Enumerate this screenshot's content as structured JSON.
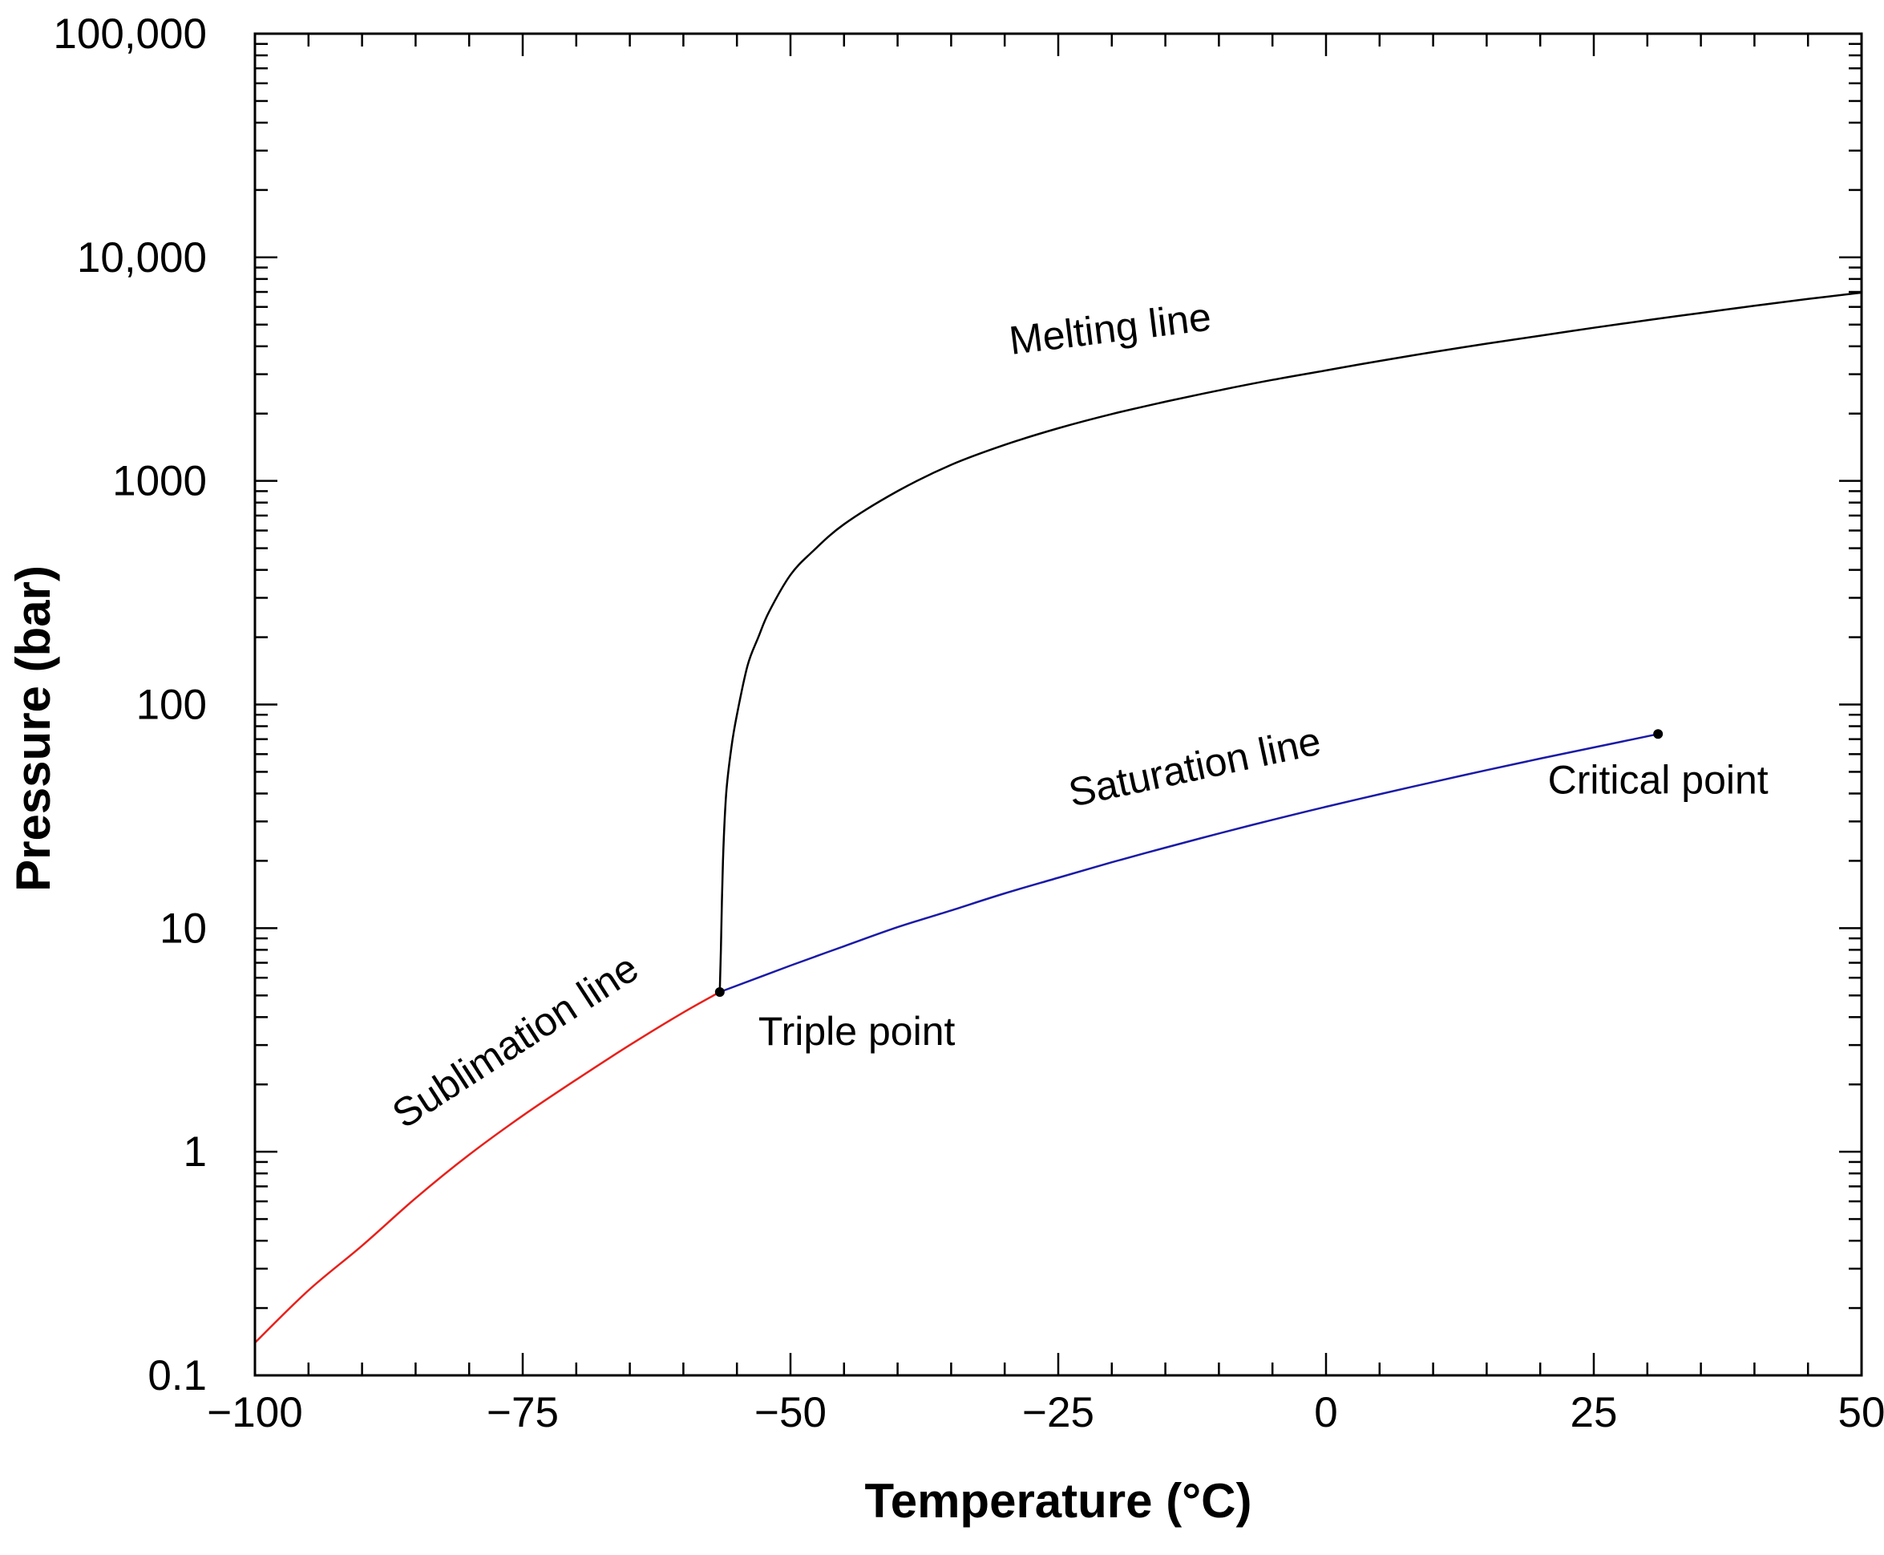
{
  "chart_data": {
    "type": "line",
    "title": "",
    "xlabel": "Temperature (°C)",
    "ylabel": "Pressure (bar)",
    "xlim": [
      -100,
      50
    ],
    "ylim": [
      0.1,
      100000
    ],
    "yscale": "log",
    "grid": false,
    "x_major_ticks": [
      {
        "value": -100,
        "label": "−100"
      },
      {
        "value": -75,
        "label": "−75"
      },
      {
        "value": -50,
        "label": "−50"
      },
      {
        "value": -25,
        "label": "−25"
      },
      {
        "value": 0,
        "label": "0"
      },
      {
        "value": 25,
        "label": "25"
      },
      {
        "value": 50,
        "label": "50"
      }
    ],
    "x_minor_step": 5,
    "y_major_ticks": [
      {
        "value": 0.1,
        "label": "0.1"
      },
      {
        "value": 1,
        "label": "1"
      },
      {
        "value": 10,
        "label": "10"
      },
      {
        "value": 100,
        "label": "100"
      },
      {
        "value": 1000,
        "label": "1000"
      },
      {
        "value": 10000,
        "label": "10,000"
      },
      {
        "value": 100000,
        "label": "100,000"
      }
    ],
    "series": [
      {
        "key": "sublimation",
        "color": "#e8201a",
        "x": [
          -100,
          -95,
          -90,
          -85,
          -80,
          -75,
          -70,
          -65,
          -60,
          -56.6
        ],
        "y": [
          0.14,
          0.24,
          0.38,
          0.62,
          0.97,
          1.45,
          2.1,
          3.0,
          4.2,
          5.18
        ]
      },
      {
        "key": "saturation",
        "color": "#1a1aa8",
        "x": [
          -56.6,
          -50,
          -45,
          -40,
          -35,
          -30,
          -25,
          -20,
          -15,
          -10,
          -5,
          0,
          5,
          10,
          15,
          20,
          25,
          31.0
        ],
        "y": [
          5.18,
          6.8,
          8.3,
          10.1,
          12.0,
          14.3,
          16.8,
          19.7,
          22.9,
          26.5,
          30.5,
          34.9,
          39.7,
          45.0,
          50.9,
          57.3,
          64.3,
          73.8
        ]
      },
      {
        "key": "melting",
        "color": "#000000",
        "x": [
          -56.6,
          -56.5,
          -56.3,
          -56.0,
          -55.5,
          -55.0,
          -54.0,
          -53.0,
          -52.0,
          -50.0,
          -48.0,
          -45.0,
          -40.0,
          -35.0,
          -30.0,
          -25.0,
          -20.0,
          -15.0,
          -10.0,
          -5.0,
          0.0,
          5.0,
          10.0,
          15.0,
          20.0,
          25.0,
          30.0,
          35.0,
          40.0,
          45.0,
          50.0
        ],
        "y": [
          5.18,
          8,
          20,
          40,
          65,
          90,
          150,
          200,
          260,
          380,
          480,
          640,
          900,
          1180,
          1450,
          1720,
          1990,
          2260,
          2540,
          2830,
          3120,
          3440,
          3770,
          4110,
          4460,
          4840,
          5230,
          5640,
          6070,
          6510,
          6950
        ]
      }
    ],
    "points": [
      {
        "key": "triple",
        "x": -56.6,
        "y": 5.18
      },
      {
        "key": "critical",
        "x": 31.0,
        "y": 73.8
      }
    ],
    "annotations": {
      "melting_line": {
        "text": "Melting line",
        "x": -20,
        "y": 3000
      },
      "saturation_line": {
        "text": "Saturation line",
        "x": -12,
        "y": 33
      },
      "sublimation_line": {
        "text": "Sublimation line",
        "x": -75,
        "y": 2.0
      },
      "triple_point": {
        "text": "Triple point",
        "x": -53,
        "y": 3.0
      },
      "critical_point": {
        "text": "Critical point",
        "x": 31.0,
        "y": 40
      }
    }
  }
}
